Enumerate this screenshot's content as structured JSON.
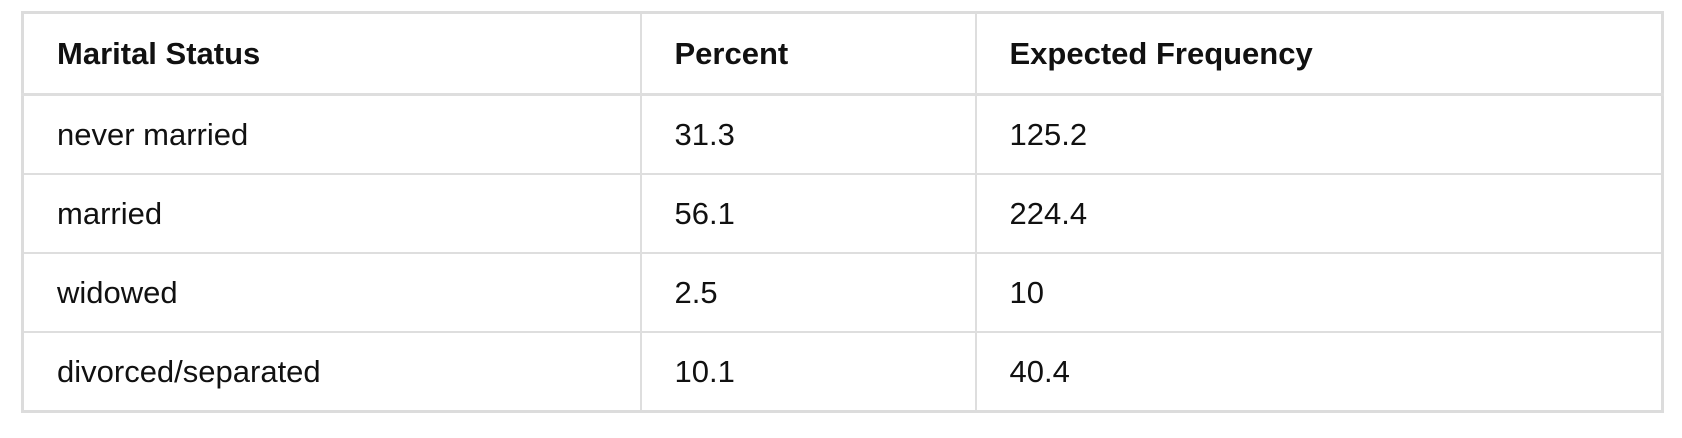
{
  "table": {
    "headers": [
      "Marital Status",
      "Percent",
      "Expected Frequency"
    ],
    "rows": [
      [
        "never married",
        "31.3",
        "125.2"
      ],
      [
        "married",
        "56.1",
        "224.4"
      ],
      [
        "widowed",
        "2.5",
        "10"
      ],
      [
        "divorced/separated",
        "10.1",
        "40.4"
      ]
    ]
  }
}
